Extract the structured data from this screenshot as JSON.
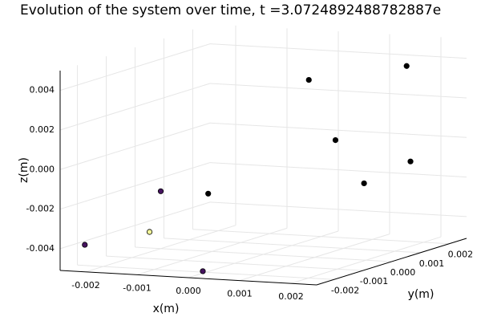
{
  "chart_data": {
    "type": "scatter3d",
    "title": "Evolution of the system over time, t =3.0724892488782887e",
    "xlabel": "x(m)",
    "ylabel": "y(m)",
    "zlabel": "z(m)",
    "x": [
      -0.0023,
      -0.002,
      -0.0016,
      0.0,
      -0.0013,
      0.0001,
      0.0015,
      0.0009,
      0.0023,
      0.0018
    ],
    "y": [
      -0.0021,
      0.0,
      -0.0011,
      -0.0021,
      0.0004,
      0.0014,
      0.0023,
      0.0009,
      -0.0006,
      0.0019
    ],
    "z": [
      -0.004,
      -0.0022,
      -0.0037,
      -0.005,
      -0.0024,
      0.0031,
      0.0036,
      0.0004,
      -0.0009,
      -0.001
    ],
    "colors": [
      "#45135f",
      "#45135f",
      "#f4f89a",
      "#45135f",
      "#000000",
      "#000000",
      "#000000",
      "#000000",
      "#000000",
      "#000000"
    ],
    "xlim": [
      -0.0025,
      0.0025
    ],
    "ylim": [
      -0.0026,
      0.0026
    ],
    "zlim": [
      -0.0051,
      0.005
    ],
    "xticks": [
      -0.002,
      -0.001,
      {
        "value": 0,
        "label": "0.000"
      },
      0.001,
      0.002
    ],
    "yticks": [
      -0.002,
      -0.001,
      {
        "value": 0,
        "label": "0.000"
      },
      0.001,
      0.002
    ],
    "zticks": [
      -0.004,
      -0.002,
      {
        "value": 0,
        "label": "0.000"
      },
      0.002,
      0.004
    ],
    "grid": true
  }
}
